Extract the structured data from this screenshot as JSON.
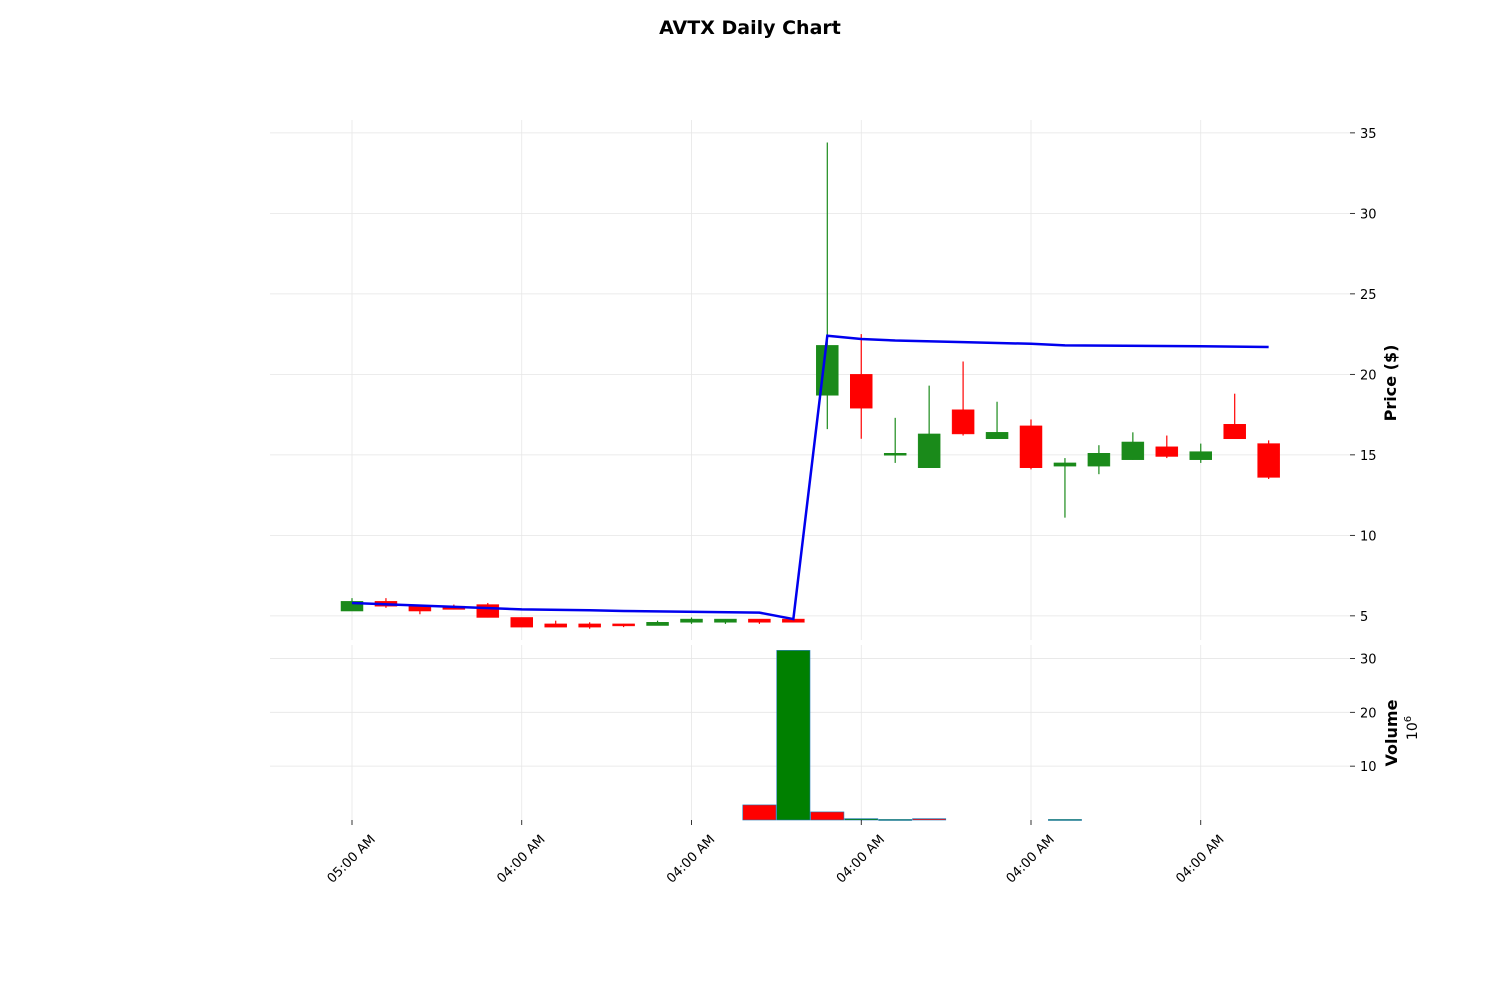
{
  "chart_data": {
    "type": "candlestick",
    "title": "AVTX Daily Chart",
    "price_axis": {
      "label": "Price ($)",
      "position": "right",
      "ticks": [
        5,
        10,
        15,
        20,
        25,
        30,
        35
      ],
      "range": [
        3.5,
        35.8
      ]
    },
    "volume_axis": {
      "label": "Volume",
      "multiplier": "10^6",
      "position": "right",
      "ticks": [
        10,
        20,
        30
      ],
      "range": [
        0,
        32.5
      ]
    },
    "x_tick_labels": [
      "05:00 AM",
      "04:00 AM",
      "04:00 AM",
      "04:00 AM",
      "04:00 AM",
      "04:00 AM"
    ],
    "x_tick_positions": [
      0,
      5,
      10,
      15,
      20,
      25
    ],
    "grid": true,
    "colors": {
      "up": "#1a8a1a",
      "down": "#ff0000",
      "moving_average": "#0000ee",
      "volume_up": "#008000",
      "volume_down": "#ff0000",
      "grid": "#e6e6e6"
    },
    "candles": [
      {
        "open": 5.3,
        "high": 6.1,
        "low": 5.3,
        "close": 5.9
      },
      {
        "open": 5.9,
        "high": 6.1,
        "low": 5.5,
        "close": 5.6
      },
      {
        "open": 5.6,
        "high": 5.7,
        "low": 5.1,
        "close": 5.3
      },
      {
        "open": 5.6,
        "high": 5.7,
        "low": 5.4,
        "close": 5.4
      },
      {
        "open": 5.7,
        "high": 5.8,
        "low": 4.9,
        "close": 4.9
      },
      {
        "open": 4.9,
        "high": 4.9,
        "low": 4.3,
        "close": 4.3
      },
      {
        "open": 4.5,
        "high": 4.7,
        "low": 4.3,
        "close": 4.3
      },
      {
        "open": 4.5,
        "high": 4.6,
        "low": 4.2,
        "close": 4.3
      },
      {
        "open": 4.5,
        "high": 4.5,
        "low": 4.3,
        "close": 4.4
      },
      {
        "open": 4.4,
        "high": 4.7,
        "low": 4.4,
        "close": 4.6
      },
      {
        "open": 4.6,
        "high": 4.9,
        "low": 4.5,
        "close": 4.8
      },
      {
        "open": 4.6,
        "high": 4.8,
        "low": 4.5,
        "close": 4.8
      },
      {
        "open": 4.8,
        "high": 4.8,
        "low": 4.5,
        "close": 4.6
      },
      {
        "open": 4.8,
        "high": 4.8,
        "low": 4.6,
        "close": 4.6
      },
      {
        "open": 18.7,
        "high": 34.4,
        "low": 16.6,
        "close": 21.8
      },
      {
        "open": 20.0,
        "high": 22.5,
        "low": 16.0,
        "close": 17.9
      },
      {
        "open": 15.0,
        "high": 17.3,
        "low": 14.5,
        "close": 15.1
      },
      {
        "open": 14.2,
        "high": 19.3,
        "low": 14.2,
        "close": 16.3
      },
      {
        "open": 17.8,
        "high": 20.8,
        "low": 16.2,
        "close": 16.3
      },
      {
        "open": 16.0,
        "high": 18.3,
        "low": 16.0,
        "close": 16.4
      },
      {
        "open": 16.8,
        "high": 17.2,
        "low": 14.1,
        "close": 14.2
      },
      {
        "open": 14.3,
        "high": 14.8,
        "low": 11.1,
        "close": 14.5
      },
      {
        "open": 14.3,
        "high": 15.6,
        "low": 13.8,
        "close": 15.1
      },
      {
        "open": 14.7,
        "high": 16.4,
        "low": 14.7,
        "close": 15.8
      },
      {
        "open": 15.5,
        "high": 16.2,
        "low": 14.8,
        "close": 14.9
      },
      {
        "open": 14.7,
        "high": 15.7,
        "low": 14.5,
        "close": 15.2
      },
      {
        "open": 16.9,
        "high": 18.8,
        "low": 16.0,
        "close": 16.0
      },
      {
        "open": 15.7,
        "high": 15.9,
        "low": 13.5,
        "close": 13.6
      }
    ],
    "volume": [
      0,
      0,
      0,
      0,
      0,
      0,
      0,
      0,
      0,
      0,
      0,
      0,
      2.8,
      31.5,
      1.5,
      0.25,
      0.1,
      0.25,
      0,
      0,
      0,
      0.1,
      0,
      0,
      0,
      0,
      0,
      0
    ],
    "volume_up": [
      false,
      false,
      false,
      false,
      false,
      false,
      false,
      false,
      false,
      false,
      false,
      false,
      false,
      true,
      false,
      true,
      true,
      false,
      false,
      false,
      false,
      true,
      false,
      false,
      false,
      false,
      false,
      false
    ],
    "moving_average": {
      "x": [
        0,
        5,
        7,
        8,
        12,
        13,
        14,
        15,
        16,
        18,
        20,
        21,
        25,
        27
      ],
      "y": [
        5.8,
        5.4,
        5.35,
        5.3,
        5.2,
        4.8,
        22.4,
        22.2,
        22.1,
        22.0,
        21.9,
        21.8,
        21.75,
        21.7
      ]
    }
  }
}
